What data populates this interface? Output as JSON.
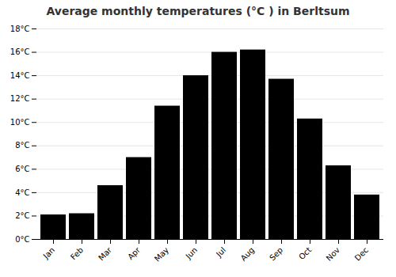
{
  "chart_data": {
    "type": "bar",
    "title": "Average monthly temperatures (°C ) in Berltsum",
    "categories": [
      "Jan",
      "Feb",
      "Mar",
      "Apr",
      "May",
      "Jun",
      "Jul",
      "Aug",
      "Sep",
      "Oct",
      "Nov",
      "Dec"
    ],
    "values": [
      2.1,
      2.2,
      4.6,
      7.0,
      11.4,
      14.0,
      16.0,
      16.2,
      13.7,
      10.3,
      6.3,
      3.8
    ],
    "ylim": [
      0,
      18
    ],
    "yticks": [
      {
        "value": 0,
        "label": "0°C"
      },
      {
        "value": 2,
        "label": "2°C"
      },
      {
        "value": 4,
        "label": "4°C"
      },
      {
        "value": 6,
        "label": "6°C"
      },
      {
        "value": 8,
        "label": "8°C"
      },
      {
        "value": 10,
        "label": "10°C"
      },
      {
        "value": 12,
        "label": "12°C"
      },
      {
        "value": 14,
        "label": "14°C"
      },
      {
        "value": 16,
        "label": "16°C"
      },
      {
        "value": 18,
        "label": "18°C"
      }
    ],
    "grid": true
  }
}
